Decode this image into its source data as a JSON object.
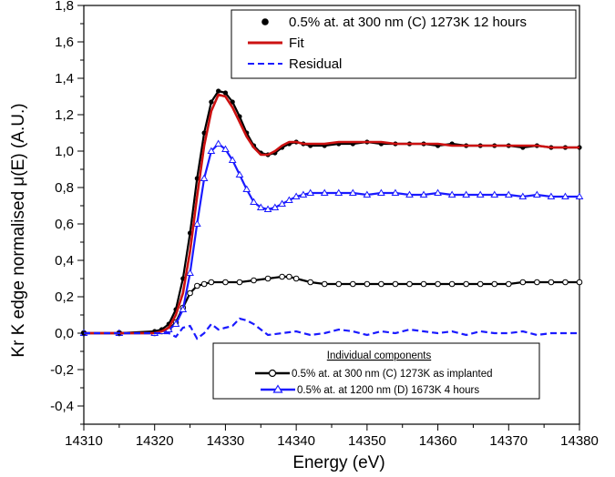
{
  "chart_data": {
    "type": "line",
    "xlabel": "Energy (eV)",
    "ylabel": "Kr K edge normalised μ(E) (A.U.)",
    "xlim": [
      14310,
      14380
    ],
    "ylim": [
      -0.5,
      1.8
    ],
    "x_ticks": [
      14310,
      14320,
      14330,
      14340,
      14350,
      14360,
      14370,
      14380
    ],
    "x_tick_labels": [
      "14310",
      "14320",
      "14330",
      "14340",
      "14350",
      "14360",
      "14370",
      "14380"
    ],
    "y_ticks": [
      -0.4,
      -0.2,
      0.0,
      0.2,
      0.4,
      0.6,
      0.8,
      1.0,
      1.2,
      1.4,
      1.6,
      1.8
    ],
    "y_tick_labels": [
      "-0,4",
      "-0,2",
      "0,0",
      "0,2",
      "0,4",
      "0,6",
      "0,8",
      "1,0",
      "1,2",
      "1,4",
      "1,6",
      "1,8"
    ],
    "grid": false,
    "legend": {
      "placement": "top-right",
      "entries": [
        {
          "label": "0.5% at. at 300 nm (C) 1273K 12 hours",
          "color": "#000000",
          "style": "dots"
        },
        {
          "label": "Fit",
          "color": "#cc1111",
          "style": "solid"
        },
        {
          "label": "Residual",
          "color": "#1a1aff",
          "style": "dashed"
        }
      ]
    },
    "inset_legend": {
      "placement": "bottom-right",
      "title": "Individual components",
      "entries": [
        {
          "label": "0.5% at. at 300 nm (C) 1273K as implanted",
          "color": "#000000",
          "marker": "circle"
        },
        {
          "label": "0.5% at. at 1200 nm (D) 1673K 4 hours",
          "color": "#1a1aff",
          "marker": "triangle"
        }
      ]
    },
    "series": [
      {
        "name": "0.5% at. at 300 nm (C) 1273K 12 hours",
        "color": "#000000",
        "style": "dots",
        "x": [
          14310,
          14315,
          14320,
          14321,
          14322,
          14323,
          14324,
          14325,
          14326,
          14327,
          14328,
          14329,
          14330,
          14331,
          14332,
          14333,
          14334,
          14335,
          14336,
          14337,
          14338,
          14339,
          14340,
          14341,
          14342,
          14344,
          14346,
          14348,
          14350,
          14352,
          14354,
          14356,
          14358,
          14360,
          14362,
          14364,
          14366,
          14368,
          14370,
          14372,
          14374,
          14376,
          14378,
          14380
        ],
        "y": [
          0.0,
          0.0,
          0.01,
          0.02,
          0.05,
          0.13,
          0.3,
          0.55,
          0.85,
          1.1,
          1.27,
          1.33,
          1.32,
          1.27,
          1.19,
          1.1,
          1.03,
          0.99,
          0.98,
          0.99,
          1.02,
          1.04,
          1.05,
          1.04,
          1.03,
          1.03,
          1.04,
          1.04,
          1.05,
          1.04,
          1.04,
          1.04,
          1.04,
          1.03,
          1.04,
          1.03,
          1.03,
          1.03,
          1.03,
          1.02,
          1.03,
          1.02,
          1.02,
          1.02
        ]
      },
      {
        "name": "Fit",
        "color": "#cc1111",
        "style": "solid",
        "x": [
          14310,
          14315,
          14320,
          14321,
          14322,
          14323,
          14324,
          14325,
          14326,
          14327,
          14328,
          14329,
          14330,
          14331,
          14332,
          14333,
          14334,
          14335,
          14336,
          14337,
          14338,
          14339,
          14340,
          14341,
          14342,
          14344,
          14346,
          14348,
          14350,
          14352,
          14354,
          14356,
          14358,
          14360,
          14362,
          14364,
          14366,
          14368,
          14370,
          14372,
          14374,
          14376,
          14378,
          14380
        ],
        "y": [
          0.0,
          0.0,
          0.0,
          0.01,
          0.03,
          0.1,
          0.22,
          0.45,
          0.75,
          1.03,
          1.22,
          1.31,
          1.3,
          1.24,
          1.16,
          1.08,
          1.02,
          0.98,
          0.98,
          1.0,
          1.03,
          1.05,
          1.05,
          1.04,
          1.04,
          1.04,
          1.05,
          1.05,
          1.05,
          1.05,
          1.04,
          1.04,
          1.04,
          1.04,
          1.03,
          1.03,
          1.03,
          1.03,
          1.03,
          1.03,
          1.03,
          1.02,
          1.02,
          1.02
        ]
      },
      {
        "name": "Residual",
        "color": "#1a1aff",
        "style": "dashed",
        "x": [
          14310,
          14315,
          14320,
          14322,
          14323,
          14324,
          14325,
          14326,
          14327,
          14328,
          14329,
          14330,
          14331,
          14332,
          14333,
          14334,
          14335,
          14336,
          14338,
          14340,
          14342,
          14344,
          14346,
          14348,
          14350,
          14352,
          14354,
          14356,
          14358,
          14360,
          14362,
          14364,
          14366,
          14368,
          14370,
          14372,
          14374,
          14376,
          14378,
          14380
        ],
        "y": [
          0.0,
          0.0,
          0.0,
          0.0,
          -0.02,
          0.03,
          0.04,
          -0.03,
          0.0,
          0.05,
          0.02,
          0.03,
          0.04,
          0.08,
          0.07,
          0.05,
          0.02,
          -0.01,
          0.0,
          0.01,
          -0.01,
          0.0,
          0.02,
          0.01,
          -0.01,
          0.01,
          0.0,
          0.02,
          0.01,
          0.0,
          0.01,
          -0.01,
          0.01,
          0.0,
          0.0,
          0.01,
          -0.01,
          0.0,
          0.0,
          0.0
        ]
      },
      {
        "name": "0.5% at. at 300 nm (C) 1273K as implanted",
        "color": "#000000",
        "style": "circle-markers",
        "x": [
          14310,
          14315,
          14320,
          14321,
          14322,
          14323,
          14324,
          14325,
          14326,
          14327,
          14328,
          14330,
          14332,
          14334,
          14336,
          14338,
          14339,
          14340,
          14342,
          14344,
          14346,
          14348,
          14350,
          14352,
          14354,
          14356,
          14358,
          14360,
          14362,
          14364,
          14366,
          14368,
          14370,
          14372,
          14374,
          14376,
          14378,
          14380
        ],
        "y": [
          0.0,
          0.0,
          0.0,
          0.01,
          0.02,
          0.06,
          0.14,
          0.22,
          0.26,
          0.27,
          0.28,
          0.28,
          0.28,
          0.29,
          0.3,
          0.31,
          0.31,
          0.3,
          0.28,
          0.27,
          0.27,
          0.27,
          0.27,
          0.27,
          0.27,
          0.27,
          0.27,
          0.27,
          0.27,
          0.27,
          0.27,
          0.27,
          0.27,
          0.28,
          0.28,
          0.28,
          0.28,
          0.28
        ]
      },
      {
        "name": "0.5% at. at 1200 nm (D) 1673K 4 hours",
        "color": "#1a1aff",
        "style": "triangle-markers",
        "x": [
          14310,
          14315,
          14320,
          14321,
          14322,
          14323,
          14324,
          14325,
          14326,
          14327,
          14328,
          14329,
          14330,
          14331,
          14332,
          14333,
          14334,
          14335,
          14336,
          14337,
          14338,
          14339,
          14340,
          14341,
          14342,
          14344,
          14346,
          14348,
          14350,
          14352,
          14354,
          14356,
          14358,
          14360,
          14362,
          14364,
          14366,
          14368,
          14370,
          14372,
          14374,
          14376,
          14378,
          14380
        ],
        "y": [
          0.0,
          0.0,
          0.0,
          0.01,
          0.02,
          0.05,
          0.13,
          0.33,
          0.6,
          0.85,
          1.0,
          1.04,
          1.01,
          0.95,
          0.87,
          0.79,
          0.72,
          0.69,
          0.68,
          0.69,
          0.71,
          0.73,
          0.75,
          0.76,
          0.77,
          0.77,
          0.77,
          0.77,
          0.76,
          0.77,
          0.77,
          0.76,
          0.76,
          0.77,
          0.76,
          0.76,
          0.76,
          0.76,
          0.76,
          0.75,
          0.76,
          0.75,
          0.75,
          0.75
        ]
      }
    ]
  }
}
